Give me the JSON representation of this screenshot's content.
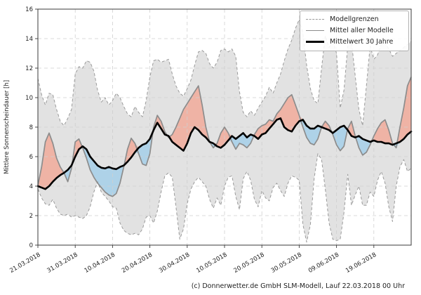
{
  "figure": {
    "ylabel": "Mittlere Sonnenscheindauer [h]",
    "footer": "(c) Donnerwetter.de GmbH SLM-Modell, Lauf 22.03.2018 00 Uhr"
  },
  "legend": {
    "items": [
      {
        "label": "Modellgrenzen",
        "style": "dashed-gray"
      },
      {
        "label": "Mittel aller Modelle",
        "style": "solid-gray"
      },
      {
        "label": "Mittelwert 30 Jahre",
        "style": "solid-black"
      }
    ]
  },
  "chart_data": {
    "type": "line",
    "title": "",
    "xlabel": "",
    "ylabel": "Mittlere Sonnenscheindauer [h]",
    "ylim": [
      0,
      16
    ],
    "y_ticks": [
      0,
      2,
      4,
      6,
      8,
      10,
      12,
      14,
      16
    ],
    "x_range_days": [
      0,
      100
    ],
    "x_ticks": [
      {
        "day": 0,
        "label": "21.03.2018"
      },
      {
        "day": 10,
        "label": "31.03.2018"
      },
      {
        "day": 20,
        "label": "10.04.2018"
      },
      {
        "day": 30,
        "label": "20.04.2018"
      },
      {
        "day": 40,
        "label": "30.04.2018"
      },
      {
        "day": 50,
        "label": "10.05.2018"
      },
      {
        "day": 60,
        "label": "20.05.2018"
      },
      {
        "day": 70,
        "label": "30.05.2018"
      },
      {
        "day": 80,
        "label": "09.06.2018"
      },
      {
        "day": 90,
        "label": "19.06.2018"
      }
    ],
    "grid": true,
    "legend_position": "upper-right",
    "colors": {
      "band_fill": "#e2e2e2",
      "bound_line": "#9a9a9a",
      "model_mean_line": "#8c8c8c",
      "climate_mean_line": "#000000",
      "above_mean_fill": "#efb3a5",
      "below_mean_fill": "#aed2e8",
      "grid_line": "#cfcfcf",
      "spine": "#3a3a3a",
      "text": "#1f1f1f"
    },
    "series": [
      {
        "name": "Modellgrenzen (obere Grenze)",
        "role": "upper_bound",
        "values": [
          11.3,
          10.2,
          9.5,
          10.3,
          10.2,
          9.2,
          8.4,
          8.1,
          8.6,
          9.2,
          11.6,
          12.1,
          12.0,
          12.5,
          12.4,
          11.8,
          10.5,
          9.7,
          10.0,
          9.5,
          9.8,
          10.3,
          10.0,
          9.4,
          8.9,
          8.7,
          9.4,
          9.0,
          8.7,
          9.8,
          11.4,
          12.5,
          12.6,
          12.4,
          12.5,
          12.6,
          11.6,
          10.8,
          10.3,
          10.1,
          10.6,
          11.2,
          12.2,
          13.1,
          13.2,
          13.0,
          12.3,
          12.0,
          12.4,
          13.2,
          13.3,
          13.1,
          13.3,
          12.8,
          10.4,
          9.0,
          8.7,
          9.1,
          8.8,
          9.3,
          9.7,
          10.1,
          10.7,
          10.3,
          11.0,
          11.6,
          12.5,
          13.3,
          13.9,
          14.7,
          15.3,
          14.4,
          12.2,
          10.6,
          9.8,
          9.6,
          12.0,
          14.2,
          13.4,
          13.9,
          13.0,
          9.3,
          10.5,
          13.5,
          13.8,
          11.5,
          9.2,
          8.1,
          10.8,
          13.5,
          12.6,
          12.9,
          13.6,
          13.7,
          13.3,
          12.8,
          13.0,
          13.2,
          13.4,
          13.6,
          13.8
        ]
      },
      {
        "name": "Modellgrenzen (untere Grenze)",
        "role": "lower_bound",
        "values": [
          3.8,
          3.2,
          2.8,
          2.7,
          3.1,
          2.5,
          2.1,
          2.0,
          2.1,
          1.9,
          2.0,
          1.9,
          1.8,
          2.0,
          2.6,
          3.6,
          4.3,
          3.6,
          3.3,
          3.0,
          2.6,
          2.5,
          1.5,
          1.0,
          0.8,
          0.7,
          0.8,
          0.7,
          1.1,
          1.9,
          2.0,
          1.5,
          2.3,
          3.6,
          4.7,
          4.9,
          4.6,
          2.6,
          0.4,
          1.1,
          2.8,
          3.8,
          4.3,
          4.6,
          4.3,
          4.0,
          3.1,
          2.5,
          3.2,
          2.7,
          4.0,
          4.6,
          4.7,
          3.3,
          2.4,
          4.5,
          5.0,
          4.4,
          3.1,
          2.6,
          3.7,
          3.2,
          3.0,
          3.9,
          4.2,
          3.7,
          3.3,
          4.2,
          4.7,
          4.6,
          4.4,
          1.4,
          0.2,
          1.4,
          4.5,
          6.2,
          5.8,
          3.8,
          1.5,
          0.4,
          0.3,
          0.4,
          2.2,
          4.8,
          2.7,
          3.4,
          4.0,
          2.7,
          2.7,
          3.6,
          3.3,
          4.4,
          5.0,
          4.2,
          2.6,
          1.6,
          4.0,
          5.3,
          5.8,
          5.0,
          5.2
        ]
      },
      {
        "name": "Mittel aller Modelle",
        "role": "model_mean",
        "values": [
          4.05,
          5.3,
          7.0,
          7.6,
          6.9,
          5.9,
          5.3,
          4.9,
          4.3,
          5.2,
          7.0,
          7.2,
          6.6,
          5.9,
          5.1,
          4.6,
          4.2,
          3.9,
          3.6,
          3.4,
          3.3,
          3.5,
          4.2,
          5.3,
          6.5,
          7.25,
          6.9,
          6.2,
          5.5,
          5.4,
          6.2,
          8.0,
          8.8,
          8.4,
          7.7,
          7.3,
          7.5,
          8.0,
          8.6,
          9.2,
          9.6,
          10.0,
          10.4,
          10.8,
          9.5,
          8.0,
          7.0,
          6.6,
          6.9,
          7.6,
          8.0,
          7.6,
          7.0,
          6.5,
          6.9,
          6.8,
          6.6,
          6.9,
          7.5,
          7.9,
          8.1,
          8.2,
          8.5,
          8.4,
          8.9,
          9.2,
          9.6,
          10.0,
          10.2,
          9.5,
          8.8,
          8.0,
          7.3,
          6.9,
          6.8,
          7.2,
          8.0,
          8.4,
          8.1,
          7.5,
          6.8,
          6.4,
          6.7,
          7.9,
          8.4,
          7.4,
          6.6,
          6.1,
          6.3,
          6.8,
          7.4,
          7.9,
          8.3,
          8.5,
          7.8,
          6.9,
          6.6,
          8.0,
          9.3,
          10.8,
          11.4
        ]
      },
      {
        "name": "Mittelwert 30 Jahre",
        "role": "climate_mean",
        "values": [
          4.0,
          3.9,
          3.8,
          4.0,
          4.3,
          4.55,
          4.75,
          4.9,
          5.1,
          5.4,
          6.0,
          6.5,
          6.7,
          6.5,
          6.0,
          5.7,
          5.4,
          5.25,
          5.2,
          5.3,
          5.2,
          5.15,
          5.3,
          5.4,
          5.65,
          5.95,
          6.3,
          6.6,
          6.8,
          6.9,
          7.2,
          7.8,
          8.3,
          7.9,
          7.5,
          7.4,
          7.0,
          6.8,
          6.6,
          6.4,
          6.9,
          7.6,
          8.0,
          7.8,
          7.5,
          7.3,
          7.0,
          6.9,
          6.7,
          6.6,
          6.8,
          7.1,
          7.4,
          7.2,
          7.4,
          7.6,
          7.3,
          7.5,
          7.4,
          7.2,
          7.5,
          7.6,
          7.9,
          8.2,
          8.5,
          8.6,
          8.0,
          7.8,
          7.7,
          8.1,
          8.4,
          8.5,
          8.1,
          7.9,
          7.9,
          8.1,
          8.0,
          7.9,
          7.8,
          7.6,
          7.8,
          8.0,
          8.1,
          7.8,
          7.4,
          7.3,
          7.4,
          7.2,
          7.1,
          7.0,
          7.1,
          7.0,
          7.0,
          6.9,
          6.9,
          6.8,
          6.9,
          7.0,
          7.2,
          7.5,
          7.7
        ]
      }
    ]
  }
}
